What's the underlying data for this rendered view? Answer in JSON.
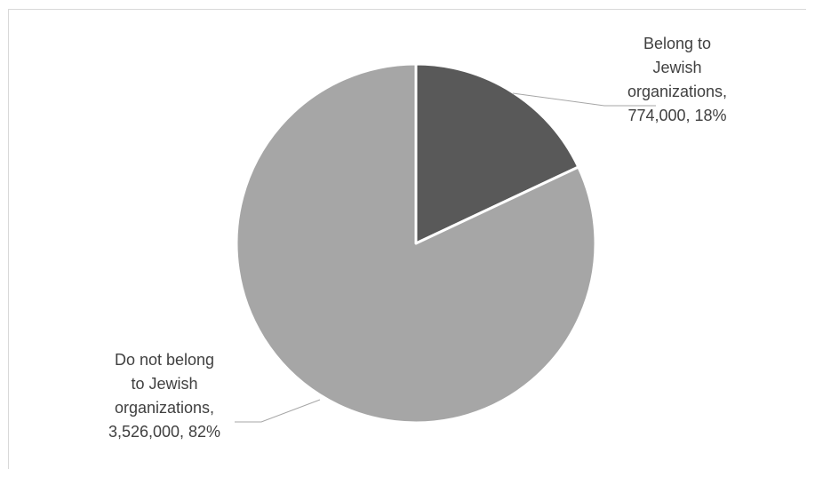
{
  "chart_data": {
    "type": "pie",
    "title": "",
    "slices": [
      {
        "label": "Belong to Jewish organizations",
        "value": 774000,
        "percent": 18,
        "color": "#595959",
        "label_lines": [
          "Belong to",
          "Jewish",
          "organizations,",
          "774,000, 18%"
        ]
      },
      {
        "label": "Do not belong to Jewish organizations",
        "value": 3526000,
        "percent": 82,
        "color": "#a6a6a6",
        "label_lines": [
          "Do not belong",
          "to Jewish",
          "organizations,",
          "3,526,000, 82%"
        ]
      }
    ],
    "legend": "none",
    "border_color": "#ffffff",
    "leader_line_color": "#a6a6a6",
    "label_color": "#404040"
  }
}
